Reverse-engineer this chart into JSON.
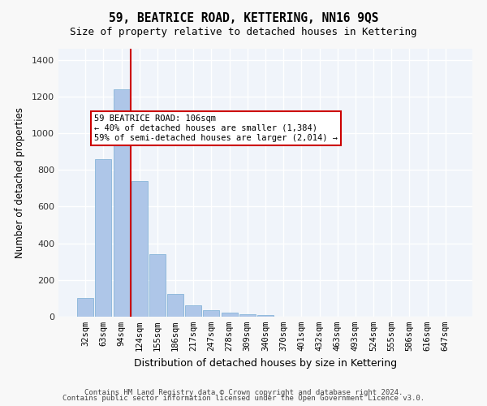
{
  "title": "59, BEATRICE ROAD, KETTERING, NN16 9QS",
  "subtitle": "Size of property relative to detached houses in Kettering",
  "xlabel": "Distribution of detached houses by size in Kettering",
  "ylabel": "Number of detached properties",
  "bar_color": "#aec6e8",
  "bar_edge_color": "#7aadd4",
  "categories": [
    "32sqm",
    "63sqm",
    "94sqm",
    "124sqm",
    "155sqm",
    "186sqm",
    "217sqm",
    "247sqm",
    "278sqm",
    "309sqm",
    "340sqm",
    "370sqm",
    "401sqm",
    "432sqm",
    "463sqm",
    "493sqm",
    "524sqm",
    "555sqm",
    "586sqm",
    "616sqm",
    "647sqm"
  ],
  "values": [
    100,
    860,
    1240,
    740,
    340,
    125,
    60,
    35,
    20,
    15,
    10,
    0,
    0,
    0,
    0,
    0,
    0,
    0,
    0,
    0,
    0
  ],
  "ylim": [
    0,
    1460
  ],
  "yticks": [
    0,
    200,
    400,
    600,
    800,
    1000,
    1200,
    1400
  ],
  "property_line_x": 2.5,
  "annotation_title": "59 BEATRICE ROAD: 106sqm",
  "annotation_line1": "← 40% of detached houses are smaller (1,384)",
  "annotation_line2": "59% of semi-detached houses are larger (2,014) →",
  "annotation_box_color": "#ffffff",
  "annotation_border_color": "#cc0000",
  "property_line_color": "#cc0000",
  "background_color": "#f0f4fa",
  "grid_color": "#ffffff",
  "footer_line1": "Contains HM Land Registry data © Crown copyright and database right 2024.",
  "footer_line2": "Contains public sector information licensed under the Open Government Licence v3.0."
}
